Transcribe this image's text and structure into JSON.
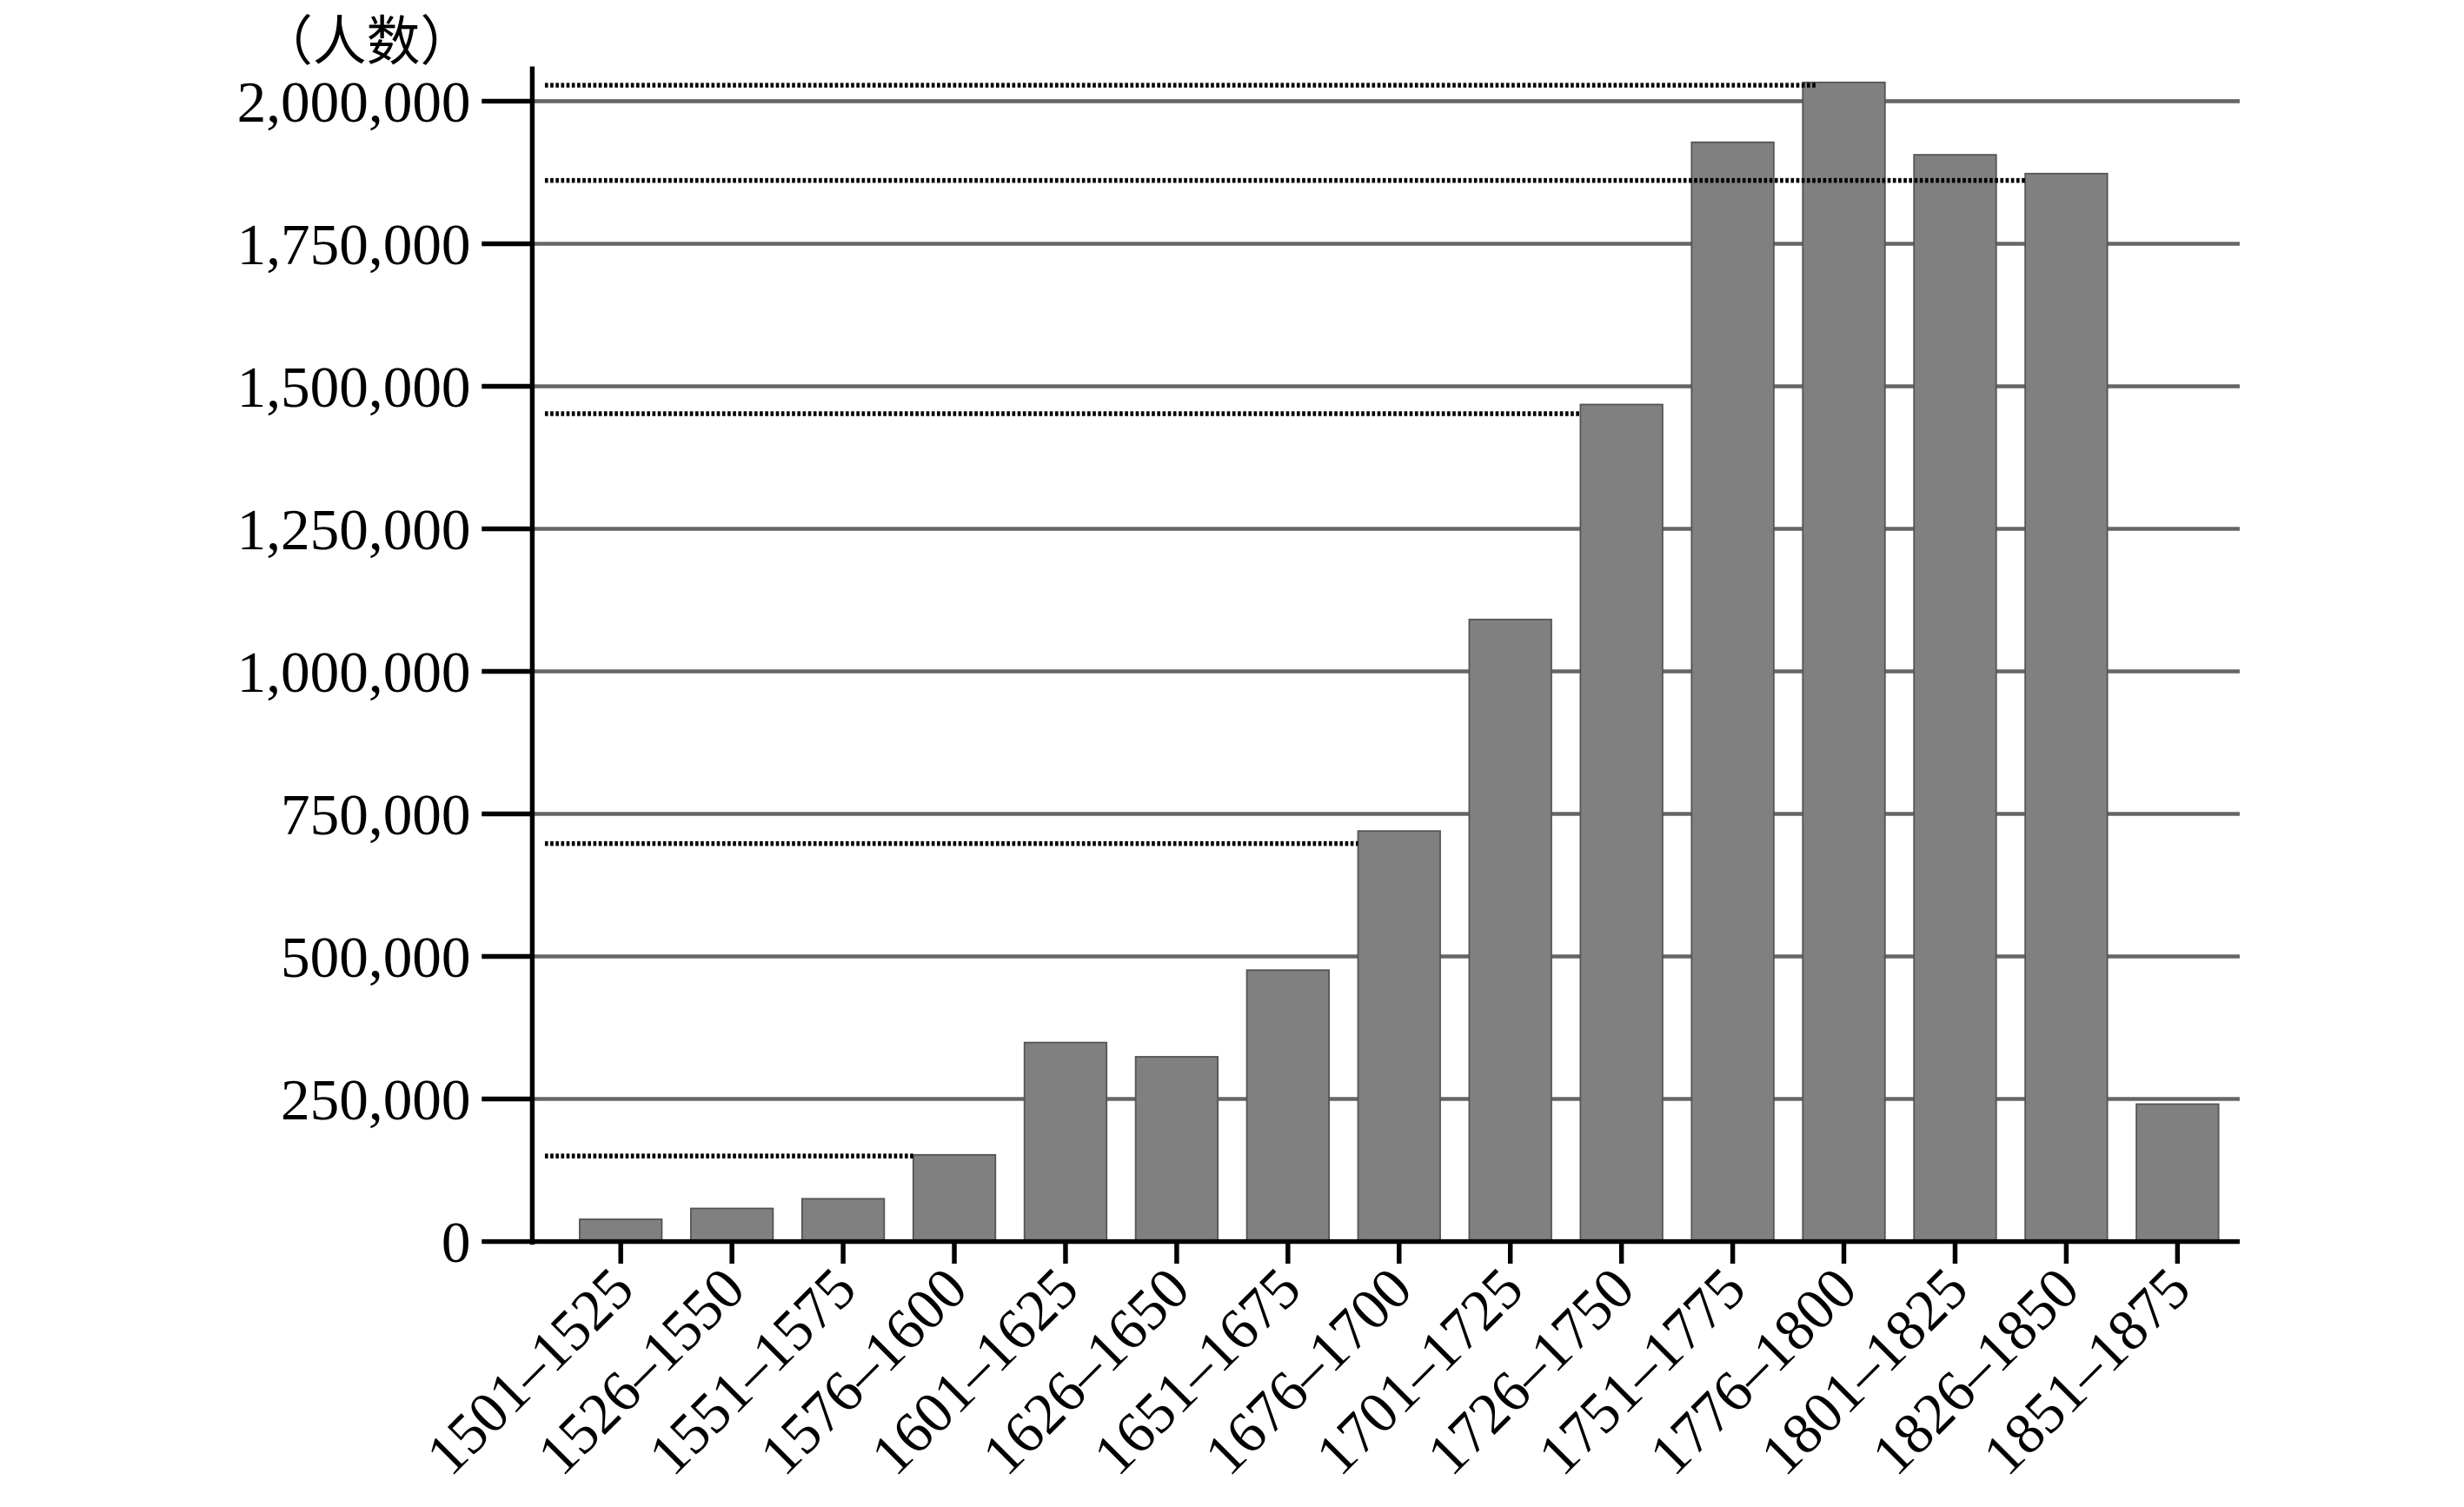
{
  "chart_data": {
    "type": "bar",
    "title": "",
    "xlabel": "",
    "ylabel": "（人数）",
    "ylim": [
      0,
      2000000
    ],
    "yticks": [
      0,
      250000,
      500000,
      750000,
      1000000,
      1250000,
      1500000,
      1750000,
      2000000
    ],
    "ytick_labels": [
      "0",
      "250,000",
      "500,000",
      "750,000",
      "1,000,000",
      "1,250,000",
      "1,500,000",
      "1,750,000",
      "2,000,000"
    ],
    "grid": "horizontal",
    "categories": [
      "1501–1525",
      "1526–1550",
      "1551–1575",
      "1576–1600",
      "1601–1625",
      "1626–1650",
      "1651–1675",
      "1676–1700",
      "1701–1725",
      "1726–1750",
      "1751–1775",
      "1776–1800",
      "1801–1825",
      "1826–1850",
      "1851–1875"
    ],
    "values": [
      39000,
      58000,
      75000,
      152000,
      349000,
      324000,
      476000,
      720000,
      1091000,
      1468000,
      1928000,
      2033000,
      1906000,
      1873000,
      241000
    ],
    "reference_lines": [
      {
        "value": 2028000,
        "until": "1776–1800",
        "style": "dotted"
      },
      {
        "value": 1861000,
        "until": "1826–1850",
        "style": "dotted"
      },
      {
        "value": 1452000,
        "until": "1726–1750",
        "style": "dotted"
      },
      {
        "value": 698000,
        "until": "1676–1700",
        "style": "dotted"
      },
      {
        "value": 150000,
        "until": "1576–1600",
        "style": "dotted"
      }
    ],
    "colors": {
      "bar": "#808080",
      "grid": "#666666",
      "axis": "#000000",
      "reference": "#000000"
    }
  }
}
